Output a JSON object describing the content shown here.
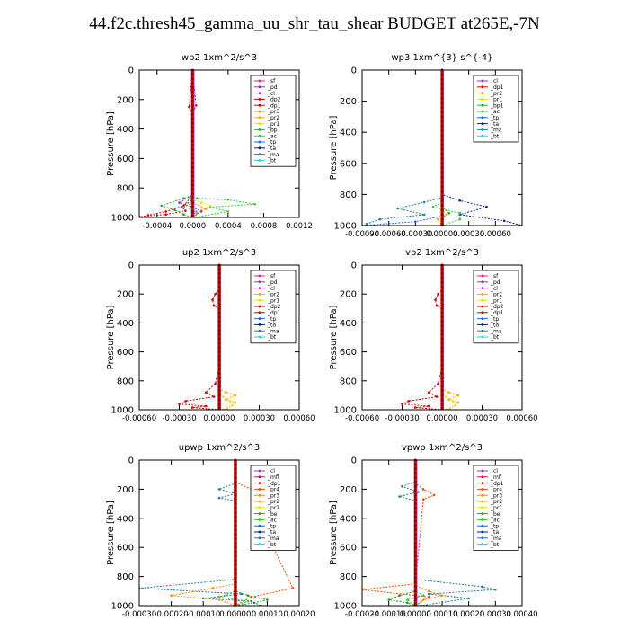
{
  "page": {
    "title": "44.f2c.thresh45_gamma_uu_shr_tau_shear  BUDGET at265E,-7N"
  },
  "colors": {
    "_sf": "#e8178a",
    "_pd": "#7b3fa6",
    "_cl": "#9a2de0",
    "_dp2": "#d40000",
    "_dp1": "#d40000",
    "_pr3": "#ff8800",
    "_pr2": "#ffaa00",
    "_pr1": "#e8e000",
    "_bp": "#2ea82e",
    "_ac": "#33cc33",
    "_tp": "#1565ff",
    "_ta": "#0a1a9a",
    "_ma": "#1f7f9a",
    "_bt": "#22d2e8",
    "_mfl": "#c0104d",
    "_pr4": "#ff4400",
    "_be": "#229922",
    "thick": "#cc0000"
  },
  "chart_data": [
    {
      "id": "wp2",
      "type": "line",
      "title": "wp2   1xm^2/s^3",
      "ylabel": "Pressure [hPa]",
      "xlim": [
        -0.0006,
        0.0012
      ],
      "ylim": [
        1000,
        0
      ],
      "xticks": [
        "-0.0004",
        "0.0000",
        "0.0004",
        "0.0008",
        "0.0012"
      ],
      "xtick_values": [
        -0.0004,
        0.0,
        0.0004,
        0.0008,
        0.0012
      ],
      "yticks": [
        "0",
        "200",
        "400",
        "600",
        "800",
        "1000"
      ],
      "legend": [
        "_sf",
        "_pd",
        "_cl",
        "_dp2",
        "_dp1",
        "_pr3",
        "_pr2",
        "_pr1",
        "_bp",
        "_ac",
        "_tp",
        "_ta",
        "_ma",
        "_bt"
      ],
      "series": [
        {
          "name": "_ac",
          "x": [
            0,
            0,
            5e-05,
            0.0004,
            0.0007,
            0.0002,
            0.0004,
            2e-05
          ],
          "y": [
            0,
            850,
            870,
            880,
            910,
            930,
            960,
            1000
          ]
        },
        {
          "name": "_bp",
          "x": [
            0,
            0,
            -0.0001,
            -0.00035,
            -0.0002,
            -0.0001,
            0
          ],
          "y": [
            0,
            850,
            870,
            920,
            950,
            980,
            1000
          ]
        },
        {
          "name": "_pr1",
          "x": [
            0,
            0,
            0.0001,
            0.0002,
            0.0001,
            0
          ],
          "y": [
            0,
            880,
            900,
            920,
            950,
            1000
          ]
        },
        {
          "name": "_dp2",
          "x": [
            0,
            -4e-05,
            0,
            0,
            -0.0001,
            -0.0003,
            -0.0005,
            -0.0006
          ],
          "y": [
            0,
            250,
            300,
            850,
            920,
            960,
            985,
            1000
          ]
        },
        {
          "name": "_dp1",
          "x": [
            0,
            4e-05,
            0,
            0,
            -0.00012,
            -8e-05,
            -0.0003,
            -0.0006
          ],
          "y": [
            0,
            240,
            290,
            880,
            930,
            955,
            980,
            995
          ]
        },
        {
          "name": "_pr3",
          "x": [
            0,
            0,
            0.00015,
            5e-05,
            0
          ],
          "y": [
            0,
            900,
            940,
            970,
            1000
          ]
        },
        {
          "name": "_cl",
          "x": [
            0,
            0,
            -0.00015,
            0,
            0.0001,
            0
          ],
          "y": [
            0,
            850,
            900,
            930,
            960,
            1000
          ]
        },
        {
          "name": "_bt",
          "x": [
            0,
            0,
            -0.0001,
            4e-05,
            0
          ],
          "y": [
            0,
            900,
            930,
            960,
            1000
          ]
        }
      ]
    },
    {
      "id": "wp3",
      "type": "line",
      "title": "wp3   1xm^{3} s^{-4}",
      "ylabel": "Pressure [hPa]",
      "xlim": [
        -0.0009,
        0.0009
      ],
      "ylim": [
        1000,
        0
      ],
      "xticks": [
        "-0.00090",
        "-0.00060",
        "-0.00030",
        "0.00000",
        "0.00030",
        "0.00060"
      ],
      "xtick_values": [
        -0.0009,
        -0.0006,
        -0.0003,
        0.0,
        0.0003,
        0.0006
      ],
      "yticks": [
        "0",
        "200",
        "400",
        "600",
        "800",
        "1000"
      ],
      "legend": [
        "_cl",
        "_dp1",
        "_pr2",
        "_pr1",
        "_bp1",
        "_ac",
        "_tp",
        "_ta",
        "_ma",
        "_bt"
      ],
      "series": [
        {
          "name": "_ta",
          "x": [
            0,
            0,
            0.0002,
            0.0005,
            0.0002,
            0.0007,
            0.0009
          ],
          "y": [
            0,
            800,
            840,
            880,
            930,
            970,
            1000
          ]
        },
        {
          "name": "_ma",
          "x": [
            0,
            0,
            -0.0002,
            -0.0005,
            -0.0002,
            -0.0007,
            -0.00085
          ],
          "y": [
            0,
            820,
            850,
            890,
            930,
            960,
            990
          ]
        },
        {
          "name": "_tp",
          "x": [
            0,
            0,
            -0.0003,
            -0.0009
          ],
          "y": [
            0,
            940,
            975,
            1000
          ]
        },
        {
          "name": "_ac",
          "x": [
            0,
            0,
            -0.0001,
            0.0002,
            0.0002,
            0
          ],
          "y": [
            0,
            850,
            880,
            920,
            960,
            1000
          ]
        },
        {
          "name": "_bp",
          "x": [
            0,
            0,
            8e-05,
            0,
            0
          ],
          "y": [
            0,
            880,
            920,
            950,
            1000
          ]
        },
        {
          "name": "_pr2",
          "x": [
            0,
            0,
            5e-05,
            -5e-05,
            0
          ],
          "y": [
            0,
            900,
            930,
            960,
            1000
          ]
        }
      ]
    },
    {
      "id": "up2",
      "type": "line",
      "title": "up2   1xm^2/s^3",
      "ylabel": "Pressure [hPa]",
      "xlim": [
        -0.0006,
        0.0006
      ],
      "ylim": [
        1000,
        0
      ],
      "xticks": [
        "-0.00060",
        "-0.00030",
        "0.00000",
        "0.00030",
        "0.00060"
      ],
      "xtick_values": [
        -0.0006,
        -0.0003,
        0.0,
        0.0003,
        0.0006
      ],
      "yticks": [
        "0",
        "200",
        "400",
        "600",
        "800",
        "1000"
      ],
      "legend": [
        "_sf",
        "_pd",
        "_cl",
        "_pr2",
        "_pr1",
        "_dp2",
        "_dp1",
        "_tp",
        "_ta",
        "_ma",
        "_bt"
      ],
      "series": [
        {
          "name": "_dp2",
          "x": [
            0,
            0,
            -3e-05,
            -5e-05,
            -4e-05,
            0,
            0
          ],
          "y": [
            0,
            170,
            200,
            240,
            280,
            300,
            1000
          ]
        },
        {
          "name": "_dp1",
          "x": [
            0,
            0,
            -3e-05,
            -0.0001,
            -4e-05,
            -0.00025,
            -0.0003,
            -0.0001,
            -0.0002,
            0
          ],
          "y": [
            0,
            700,
            820,
            880,
            910,
            940,
            960,
            975,
            985,
            1000
          ]
        },
        {
          "name": "_pr2",
          "x": [
            0,
            0,
            5e-05,
            0.00012,
            5e-05,
            0.00012,
            5e-05
          ],
          "y": [
            0,
            850,
            880,
            900,
            930,
            950,
            1000
          ]
        },
        {
          "name": "_pr1",
          "x": [
            0,
            0,
            3e-05,
            8e-05,
            0.0001,
            3e-05
          ],
          "y": [
            0,
            880,
            910,
            940,
            970,
            1000
          ]
        },
        {
          "name": "_cl",
          "x": [
            0,
            0
          ],
          "y": [
            0,
            1000
          ]
        }
      ]
    },
    {
      "id": "vp2",
      "type": "line",
      "title": "vp2   1xm^2/s^3",
      "ylabel": "Pressure [hPa]",
      "xlim": [
        -0.0006,
        0.0006
      ],
      "ylim": [
        1000,
        0
      ],
      "xticks": [
        "-0.00060",
        "-0.00030",
        "0.00000",
        "0.00030",
        "0.00060"
      ],
      "xtick_values": [
        -0.0006,
        -0.0003,
        0.0,
        0.0003,
        0.0006
      ],
      "yticks": [
        "0",
        "200",
        "400",
        "600",
        "800",
        "1000"
      ],
      "legend": [
        "_sf",
        "_pd",
        "_cl",
        "_pr2",
        "_pr1",
        "_dp2",
        "_dp1",
        "_tp",
        "_ta",
        "_ma",
        "_bt"
      ],
      "series": [
        {
          "name": "_dp2",
          "x": [
            0,
            0,
            -3e-05,
            -5e-05,
            -4e-05,
            0,
            0
          ],
          "y": [
            0,
            170,
            200,
            240,
            280,
            300,
            1000
          ]
        },
        {
          "name": "_dp1",
          "x": [
            0,
            0,
            -3e-05,
            -0.0001,
            -4e-05,
            -0.00025,
            -0.0003,
            -0.0001,
            -0.0002,
            0
          ],
          "y": [
            0,
            700,
            820,
            880,
            910,
            940,
            960,
            975,
            985,
            1000
          ]
        },
        {
          "name": "_pr2",
          "x": [
            0,
            0,
            5e-05,
            0.00012,
            5e-05,
            0.00012,
            5e-05
          ],
          "y": [
            0,
            850,
            880,
            900,
            930,
            950,
            1000
          ]
        },
        {
          "name": "_pr1",
          "x": [
            0,
            0,
            3e-05,
            8e-05,
            0.0001,
            3e-05
          ],
          "y": [
            0,
            880,
            910,
            940,
            970,
            1000
          ]
        },
        {
          "name": "_cl",
          "x": [
            0,
            0
          ],
          "y": [
            0,
            1000
          ]
        }
      ]
    },
    {
      "id": "upwp",
      "type": "line",
      "title": "upwp   1xm^2/s^3",
      "ylabel": "Pressure [hPa]",
      "xlim": [
        -0.0003,
        0.0002
      ],
      "ylim": [
        1000,
        0
      ],
      "xticks": [
        "-0.00030",
        "-0.00020",
        "-0.00010",
        "0.00000",
        "0.00010",
        "0.00020"
      ],
      "xtick_values": [
        -0.0003,
        -0.0002,
        -0.0001,
        0.0,
        0.0001,
        0.0002
      ],
      "yticks": [
        "0",
        "200",
        "400",
        "600",
        "800",
        "1000"
      ],
      "legend": [
        "_cl",
        "_mfl",
        "_dp1",
        "_pr4",
        "_pr3",
        "_pr2",
        "_pr1",
        "_be",
        "_ac",
        "_tp",
        "_ta",
        "_ma",
        "_bt"
      ],
      "series": [
        {
          "name": "_ma",
          "x": [
            0,
            0,
            -5e-05,
            0,
            -5e-05,
            0,
            0,
            -0.0003,
            2e-05,
            -0.0001,
            5e-05,
            8e-05
          ],
          "y": [
            0,
            160,
            200,
            230,
            260,
            280,
            820,
            880,
            920,
            950,
            970,
            1000
          ]
        },
        {
          "name": "_pr4",
          "x": [
            0,
            0,
            5e-05,
            0.00012,
            5e-05,
            0.00018,
            5e-05,
            0
          ],
          "y": [
            0,
            150,
            200,
            240,
            280,
            880,
            940,
            1000
          ]
        },
        {
          "name": "_pr3",
          "x": [
            0,
            0,
            -7e-05,
            -0.0002,
            -5e-05,
            0
          ],
          "y": [
            0,
            850,
            880,
            930,
            960,
            1000
          ]
        },
        {
          "name": "_be",
          "x": [
            0,
            0,
            4e-05,
            0.0001,
            6e-05,
            0
          ],
          "y": [
            0,
            900,
            930,
            960,
            980,
            1000
          ]
        },
        {
          "name": "_ac",
          "x": [
            0,
            0,
            -5e-05,
            4e-05,
            0
          ],
          "y": [
            0,
            900,
            940,
            970,
            1000
          ]
        },
        {
          "name": "_cl",
          "x": [
            0,
            0
          ],
          "y": [
            0,
            1000
          ]
        }
      ]
    },
    {
      "id": "vpwp",
      "type": "line",
      "title": "vpwp   1xm^2/s^3",
      "ylabel": "Pressure [hPa]",
      "xlim": [
        -0.0002,
        0.0004
      ],
      "ylim": [
        1000,
        0
      ],
      "xticks": [
        "-0.00020",
        "-0.00010",
        "0.00000",
        "0.00010",
        "0.00020",
        "0.00030",
        "0.00040"
      ],
      "xtick_values": [
        -0.0002,
        -0.0001,
        0.0,
        0.0001,
        0.0002,
        0.0003,
        0.0004
      ],
      "yticks": [
        "0",
        "200",
        "400",
        "600",
        "800",
        "1000"
      ],
      "legend": [
        "_cl",
        "_mfl",
        "_dp1",
        "_pr4",
        "_pr3",
        "_pr2",
        "_pr1",
        "_be",
        "_ac",
        "_tp",
        "_ta",
        "_ma",
        "_bt"
      ],
      "series": [
        {
          "name": "_ma",
          "x": [
            0,
            0,
            -5e-05,
            1e-05,
            -6e-05,
            0,
            0,
            0.00025,
            0.0003,
            5e-05,
            0.0002,
            2e-05
          ],
          "y": [
            0,
            150,
            180,
            220,
            250,
            280,
            820,
            870,
            890,
            920,
            950,
            1000
          ]
        },
        {
          "name": "_pr4",
          "x": [
            0,
            0,
            3e-05,
            7e-05,
            3e-05,
            0,
            -0.0002,
            5e-05,
            0
          ],
          "y": [
            0,
            160,
            200,
            240,
            270,
            850,
            890,
            940,
            1000
          ]
        },
        {
          "name": "_pr3",
          "x": [
            0,
            0,
            5e-05,
            0.0001,
            3e-05,
            0
          ],
          "y": [
            0,
            860,
            900,
            930,
            960,
            1000
          ]
        },
        {
          "name": "_be",
          "x": [
            0,
            0,
            -6e-05,
            -0.0001,
            -3e-05,
            0
          ],
          "y": [
            0,
            900,
            930,
            960,
            980,
            1000
          ]
        },
        {
          "name": "_ac",
          "x": [
            0,
            0,
            3e-05,
            -3e-05,
            0
          ],
          "y": [
            0,
            900,
            930,
            960,
            1000
          ]
        },
        {
          "name": "_cl",
          "x": [
            0,
            0
          ],
          "y": [
            0,
            1000
          ]
        }
      ]
    }
  ]
}
